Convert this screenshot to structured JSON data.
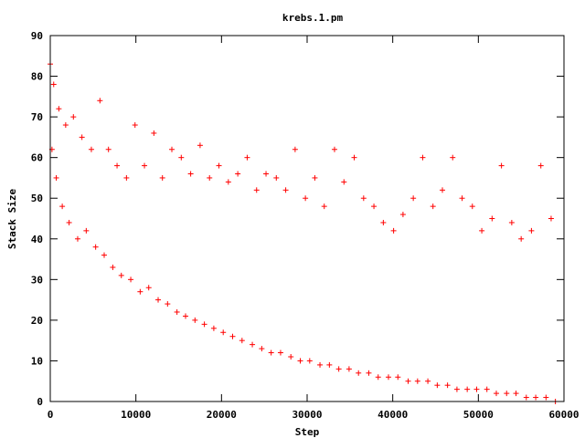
{
  "chart_data": {
    "type": "scatter",
    "title": "krebs.1.pm",
    "xlabel": "Step",
    "ylabel": "Stack Size",
    "xlim": [
      0,
      60000
    ],
    "ylim": [
      0,
      90
    ],
    "xticks": [
      0,
      10000,
      20000,
      30000,
      40000,
      50000,
      60000
    ],
    "yticks": [
      0,
      10,
      20,
      30,
      40,
      50,
      60,
      70,
      80,
      90
    ],
    "xtick_labels": [
      "0",
      "10000",
      "20000",
      "30000",
      "40000",
      "50000",
      "60000"
    ],
    "ytick_labels": [
      "0",
      "10",
      "20",
      "30",
      "40",
      "50",
      "60",
      "70",
      "80",
      "90"
    ],
    "grid": false,
    "legend": "none",
    "marker": "plus",
    "color": "#ff0000",
    "series": [
      {
        "x": [
          0,
          200,
          400,
          700,
          1000,
          1400,
          1800,
          2200,
          2700,
          3200,
          3700,
          4200,
          4800,
          5300,
          5800,
          6300,
          6800,
          7300,
          7800,
          8300,
          8900,
          9400,
          9900,
          10500,
          11000,
          11500,
          12100,
          12600,
          13100,
          13700,
          14200,
          14800,
          15300,
          15800,
          16400,
          16900,
          17500,
          18000,
          18600,
          19100,
          19700,
          20200,
          20800,
          21300,
          21900,
          22400,
          23000,
          23600,
          24100,
          24700,
          25200,
          25800,
          26400,
          26900,
          27500,
          28100,
          28600,
          29200,
          29800,
          30300,
          30900,
          31500,
          32000,
          32600,
          33200,
          33700,
          34300,
          34900,
          35500,
          36000,
          36600,
          37200,
          37800,
          38300,
          38900,
          39500,
          40100,
          40600,
          41200,
          41800,
          42400,
          42900,
          43500,
          44100,
          44700,
          45200,
          45800,
          46400,
          47000,
          47500,
          48100,
          48700,
          49300,
          49800,
          50400,
          51000,
          51600,
          52100,
          52700,
          53300,
          53900,
          54400,
          55000,
          55600,
          56200,
          56700,
          57300,
          57900,
          58500,
          59000
        ],
        "y": [
          83,
          62,
          78,
          55,
          72,
          48,
          68,
          44,
          70,
          40,
          65,
          42,
          62,
          38,
          74,
          36,
          62,
          33,
          58,
          31,
          55,
          30,
          68,
          27,
          58,
          28,
          66,
          25,
          55,
          24,
          62,
          22,
          60,
          21,
          56,
          20,
          63,
          19,
          55,
          18,
          58,
          17,
          54,
          16,
          56,
          15,
          60,
          14,
          52,
          13,
          56,
          12,
          55,
          12,
          52,
          11,
          62,
          10,
          50,
          10,
          55,
          9,
          48,
          9,
          62,
          8,
          54,
          8,
          60,
          7,
          50,
          7,
          48,
          6,
          44,
          6,
          42,
          6,
          46,
          5,
          50,
          5,
          60,
          5,
          48,
          4,
          52,
          4,
          60,
          3,
          50,
          3,
          48,
          3,
          42,
          3,
          45,
          2,
          58,
          2,
          44,
          2,
          40,
          1,
          42,
          1,
          58,
          1,
          45,
          0
        ]
      }
    ]
  }
}
